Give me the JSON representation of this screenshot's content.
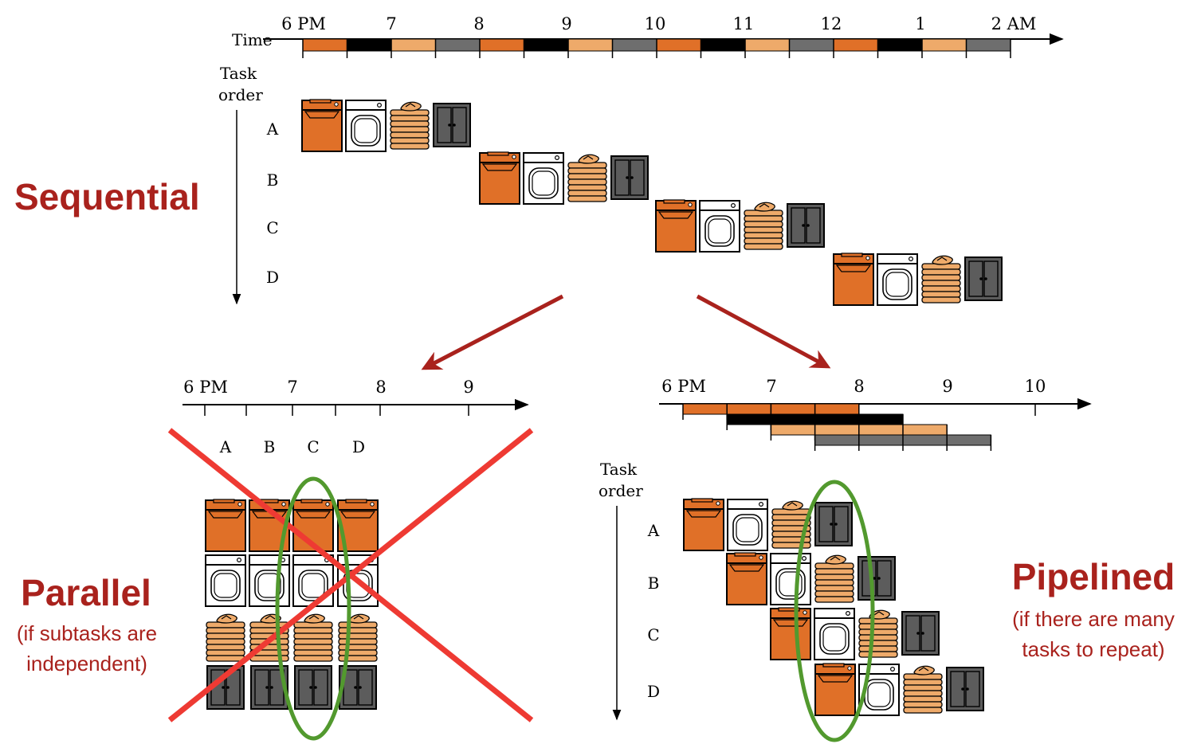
{
  "colors": {
    "washer": "#e07028",
    "dryer": "#ffffff",
    "fold": "#eeaa6a",
    "closet": "#5c5c5c",
    "time_black": "#000000",
    "time_light": "#eeaa6a",
    "time_grey": "#6e6e6e",
    "accent_red": "#a9221d",
    "cross_red": "#ee3a33",
    "ellipse_green": "#52992e"
  },
  "icons": [
    "washer-icon",
    "dryer-icon",
    "folded-clothes-icon",
    "closet-icon"
  ],
  "top": {
    "time_label": "Time",
    "task_label_1": "Task",
    "task_label_2": "order",
    "ticks": [
      "6 PM",
      "7",
      "8",
      "9",
      "10",
      "11",
      "12",
      "1",
      "2 AM"
    ],
    "tasks": [
      "A",
      "B",
      "C",
      "D"
    ],
    "mode_label": "Sequential"
  },
  "parallel": {
    "ticks": [
      "6 PM",
      "7",
      "8",
      "9"
    ],
    "columns": [
      "A",
      "B",
      "C",
      "D"
    ],
    "title": "Parallel",
    "note_1": "(if subtasks are",
    "note_2": "independent)"
  },
  "pipelined": {
    "ticks": [
      "6 PM",
      "7",
      "8",
      "9",
      "10"
    ],
    "task_label_1": "Task",
    "task_label_2": "order",
    "tasks": [
      "A",
      "B",
      "C",
      "D"
    ],
    "title": "Pipelined",
    "note_1": "(if there are many",
    "note_2": "tasks to repeat)"
  }
}
